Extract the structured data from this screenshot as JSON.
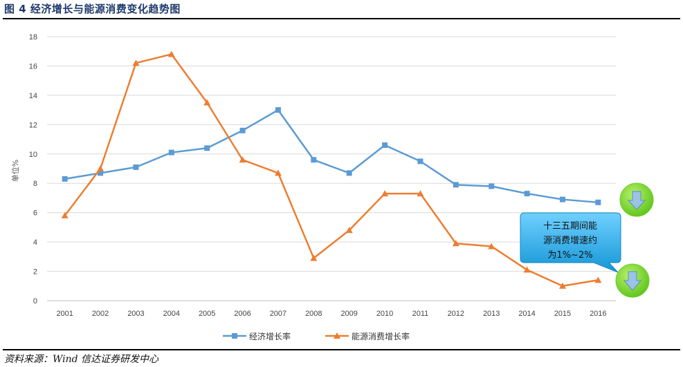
{
  "figure": {
    "title": "图 4  经济增长与能源消费变化趋势图",
    "source": "资料来源：Wind 信达证券研发中心"
  },
  "colors": {
    "gdp": "#5b9bd5",
    "energy": "#ed7d31",
    "grid": "#d9d9d9",
    "callout_fill": "#1ea0e0",
    "circle_fill": "#7ed321",
    "arrow_fill": "#9cc3e6"
  },
  "callout": {
    "line1": "十三五期间能",
    "line2": "源消费增速约",
    "line3": "为1%~2%"
  },
  "icons": [
    "down-arrow-icon",
    "down-arrow-icon"
  ],
  "chart_data": {
    "type": "line",
    "title": "经济增长与能源消费变化趋势图",
    "ylabel": "单位%",
    "xlabel": "",
    "categories": [
      "2001",
      "2002",
      "2003",
      "2004",
      "2005",
      "2006",
      "2007",
      "2008",
      "2009",
      "2010",
      "2011",
      "2012",
      "2013",
      "2014",
      "2015",
      "2016"
    ],
    "yticks": [
      "0",
      "2",
      "4",
      "6",
      "8",
      "10",
      "12",
      "14",
      "16",
      "18"
    ],
    "ylim": [
      0,
      18
    ],
    "grid": "horizontal",
    "legend_position": "bottom",
    "series": [
      {
        "name": "经济增长率",
        "marker": "square",
        "color": "#5b9bd5",
        "values": [
          8.3,
          8.7,
          9.1,
          10.1,
          10.4,
          11.6,
          13.0,
          9.6,
          8.7,
          10.6,
          9.5,
          7.9,
          7.8,
          7.3,
          6.9,
          6.7
        ]
      },
      {
        "name": "能源消费增长率",
        "marker": "triangle",
        "color": "#ed7d31",
        "values": [
          5.8,
          9.0,
          16.2,
          16.8,
          13.5,
          9.6,
          8.7,
          2.9,
          4.8,
          7.3,
          7.3,
          3.9,
          3.7,
          2.1,
          1.0,
          1.4
        ]
      }
    ]
  }
}
